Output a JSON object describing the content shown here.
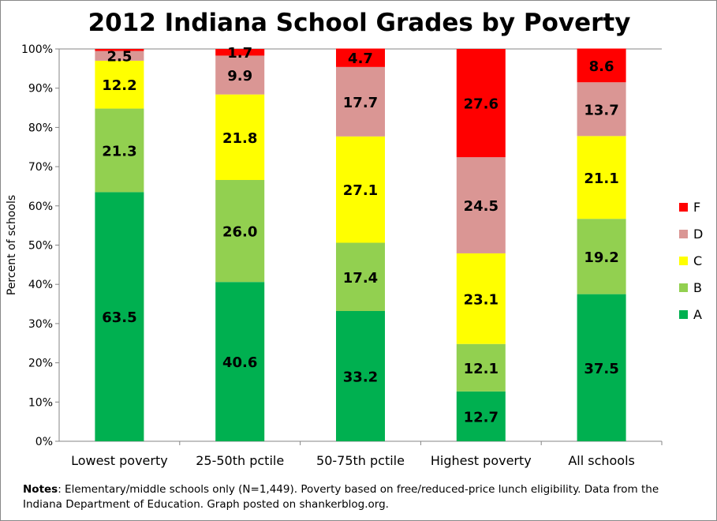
{
  "chart_data": {
    "type": "bar",
    "stacked": true,
    "title": "2012 Indiana School Grades by Poverty",
    "xlabel": "",
    "ylabel": "Percent of schools",
    "ylim": [
      0,
      100
    ],
    "yticks": [
      "0%",
      "10%",
      "20%",
      "30%",
      "40%",
      "50%",
      "60%",
      "70%",
      "80%",
      "90%",
      "100%"
    ],
    "categories": [
      "Lowest poverty",
      "25-50th pctile",
      "50-75th pctile",
      "Highest poverty",
      "All schools"
    ],
    "series": [
      {
        "name": "A",
        "color": "#00B050",
        "values": [
          63.5,
          40.6,
          33.2,
          12.7,
          37.5
        ],
        "labels": [
          "63.5",
          "40.6",
          "33.2",
          "12.7",
          "37.5"
        ]
      },
      {
        "name": "B",
        "color": "#92D050",
        "values": [
          21.3,
          26.0,
          17.4,
          12.1,
          19.2
        ],
        "labels": [
          "21.3",
          "26.0",
          "17.4",
          "12.1",
          "19.2"
        ]
      },
      {
        "name": "C",
        "color": "#FFFF00",
        "values": [
          12.2,
          21.8,
          27.1,
          23.1,
          21.1
        ],
        "labels": [
          "12.2",
          "21.8",
          "27.1",
          "23.1",
          "21.1"
        ]
      },
      {
        "name": "D",
        "color": "#DA9694",
        "values": [
          2.5,
          9.9,
          17.7,
          24.5,
          13.7
        ],
        "labels": [
          "2.5",
          "9.9",
          "17.7",
          "24.5",
          "13.7"
        ]
      },
      {
        "name": "F",
        "color": "#FF0000",
        "values": [
          0.5,
          1.7,
          4.7,
          27.6,
          8.6
        ],
        "labels": [
          "",
          "1.7",
          "4.7",
          "27.6",
          "8.6"
        ]
      }
    ],
    "legend": "right",
    "grid": false
  },
  "notes": {
    "label": "Notes",
    "text": ": Elementary/middle schools only (N=1,449). Poverty based on free/reduced-price lunch eligibility.  Data from the Indiana Department of Education. Graph posted on shankerblog.org."
  }
}
